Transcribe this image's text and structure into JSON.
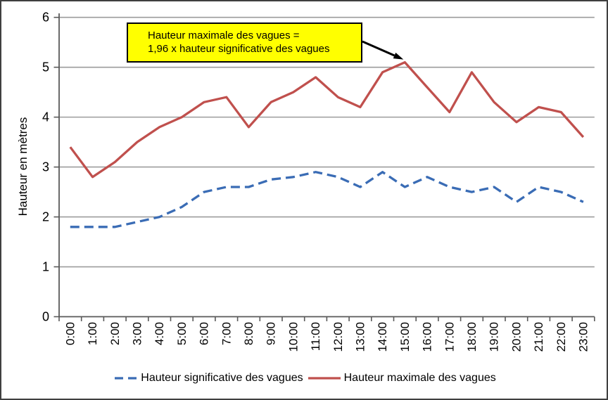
{
  "chart_data": {
    "type": "line",
    "title": "",
    "ylabel": "Hauteur en mètres",
    "xlabel": "",
    "ylim": [
      0,
      6
    ],
    "ytick_step": 1,
    "grid": "horizontal",
    "legend_position": "bottom",
    "categories": [
      "0:00",
      "1:00",
      "2:00",
      "3:00",
      "4:00",
      "5:00",
      "6:00",
      "7:00",
      "8:00",
      "9:00",
      "10:00",
      "11:00",
      "12:00",
      "13:00",
      "14:00",
      "15:00",
      "16:00",
      "17:00",
      "18:00",
      "19:00",
      "20:00",
      "21:00",
      "22:00",
      "23:00"
    ],
    "series": [
      {
        "name": "Hauteur significative des vagues",
        "style": "dashed",
        "color": "#3a6cb5",
        "values": [
          1.8,
          1.8,
          1.8,
          1.9,
          2.0,
          2.2,
          2.5,
          2.6,
          2.6,
          2.75,
          2.8,
          2.9,
          2.8,
          2.6,
          2.9,
          2.6,
          2.8,
          2.6,
          2.5,
          2.6,
          2.3,
          2.6,
          2.5,
          2.3
        ]
      },
      {
        "name": "Hauteur maximale des vagues",
        "style": "solid",
        "color": "#c0504d",
        "values": [
          3.4,
          2.8,
          3.1,
          3.5,
          3.8,
          4.0,
          4.3,
          4.4,
          3.8,
          4.3,
          4.5,
          4.8,
          4.4,
          4.2,
          4.9,
          5.1,
          4.6,
          4.1,
          4.9,
          4.3,
          3.9,
          4.2,
          4.1,
          3.6
        ]
      }
    ],
    "annotation": {
      "line1": "Hauteur maximale des vagues =",
      "line2": "1,96 x hauteur significative des vagues",
      "fill": "#ffff00",
      "border_color": "#000000",
      "target_category": "15:00",
      "target_value": 5.1
    },
    "colors": {
      "gridline": "#9c9c9c",
      "axis": "#595959",
      "text": "#000000",
      "background": "#ffffff"
    }
  }
}
